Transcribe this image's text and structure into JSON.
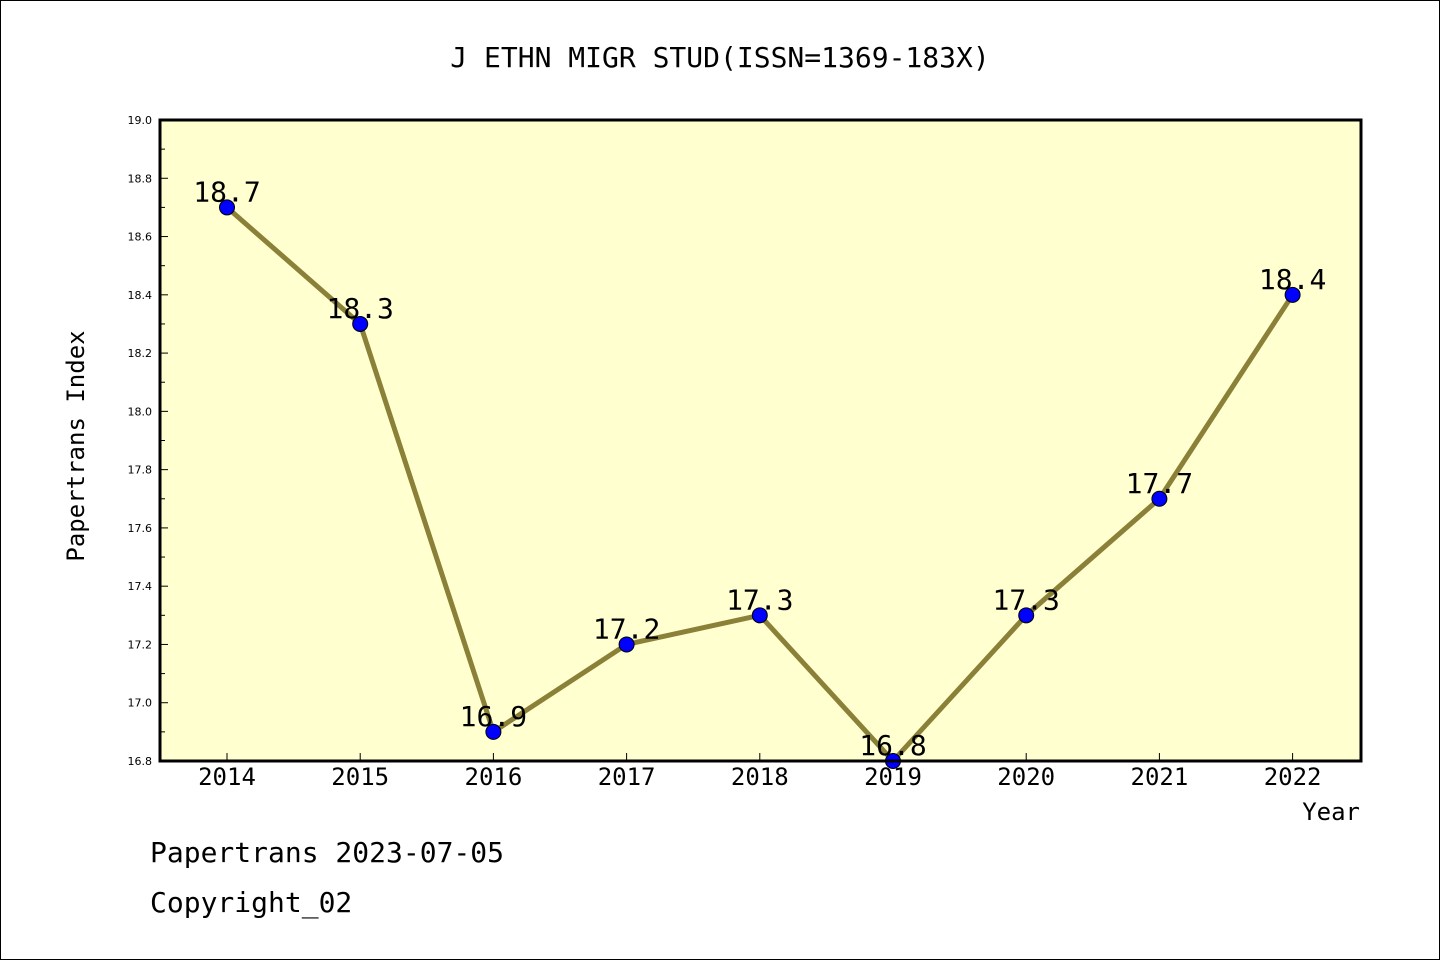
{
  "chart_data": {
    "type": "line",
    "title": "J ETHN MIGR STUD(ISSN=1369-183X)",
    "xlabel": "Year",
    "ylabel": "Papertrans Index",
    "categories": [
      "2014",
      "2015",
      "2016",
      "2017",
      "2018",
      "2019",
      "2020",
      "2021",
      "2022"
    ],
    "values": [
      18.7,
      18.3,
      16.9,
      17.2,
      17.3,
      16.8,
      17.3,
      17.7,
      18.4
    ],
    "data_labels": [
      "18.7",
      "18.3",
      "16.9",
      "17.2",
      "17.3",
      "16.8",
      "17.3",
      "17.7",
      "18.4"
    ],
    "ylim": [
      16.8,
      19.0
    ],
    "y_ticks": [
      "16.8",
      "17.0",
      "17.2",
      "17.4",
      "17.6",
      "17.8",
      "18.0",
      "18.2",
      "18.4",
      "18.6",
      "18.8",
      "19.0"
    ],
    "grid": false,
    "colors": {
      "plot_background": "#ffffd0",
      "line": "#8b8038",
      "marker": "#0000ff"
    }
  },
  "footer": {
    "line1": "Papertrans 2023-07-05",
    "line2": "Copyright_02"
  }
}
